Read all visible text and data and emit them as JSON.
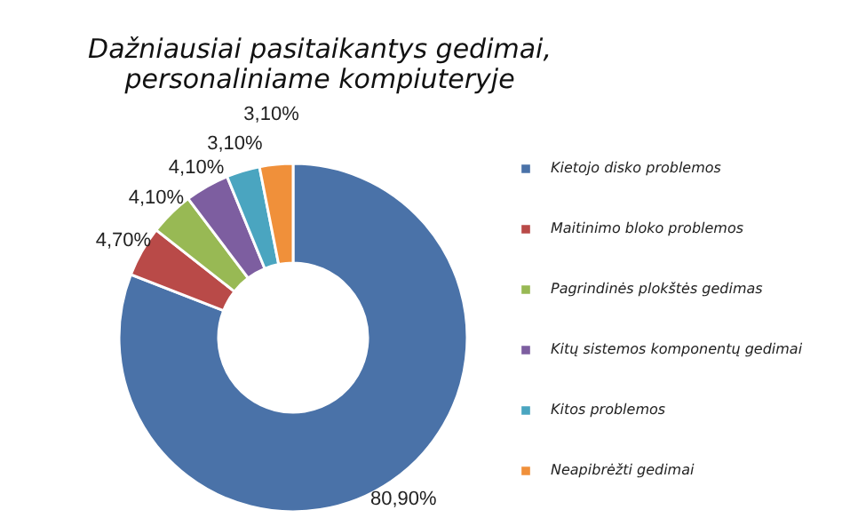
{
  "chart_data": {
    "type": "donut",
    "title": "Dažniausiai pasitaikantys gedimai,\npersonaliniame kompiuteryje",
    "categories": [
      "Kietojo disko problemos",
      "Maitinimo bloko problemos",
      "Pagrindinės plokštės gedimas",
      "Kitų sistemos komponentų gedimai",
      "Kitos problemos",
      "Neapibrėžti gedimai"
    ],
    "values": [
      80.9,
      4.7,
      4.1,
      4.1,
      3.1,
      3.1
    ],
    "value_labels": [
      "80,90%",
      "4,70%",
      "4,10%",
      "4,10%",
      "3,10%",
      "3,10%"
    ],
    "colors": [
      "#4a72a8",
      "#b94a48",
      "#98b954",
      "#7d5ea0",
      "#4aa5c0",
      "#f0903a"
    ],
    "legend": "right"
  }
}
